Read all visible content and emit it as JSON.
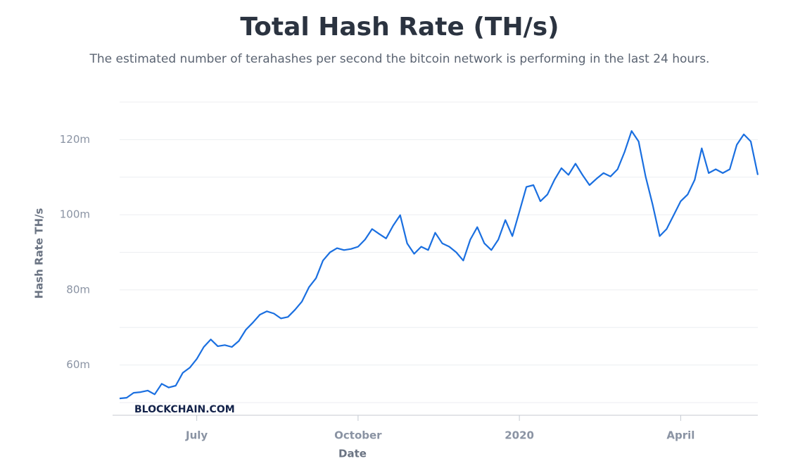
{
  "chart_data": {
    "type": "line",
    "title": "Total Hash Rate (TH/s)",
    "subtitle": "The estimated number of terahashes per second the bitcoin network is performing in the last 24 hours.",
    "ylabel": "Hash Rate TH/s",
    "xlabel": "Date",
    "watermark": "BLOCKCHAIN.COM",
    "color": "#1a6fe0",
    "grid": true,
    "ylim": [
      50,
      130
    ],
    "yticks": [
      {
        "value": 60,
        "label": "60m"
      },
      {
        "value": 80,
        "label": "80m"
      },
      {
        "value": 100,
        "label": "100m"
      },
      {
        "value": 120,
        "label": "120m"
      }
    ],
    "minor_yticks": [
      50,
      70,
      90,
      110,
      130
    ],
    "categories": [
      null,
      null,
      null,
      null,
      null,
      null,
      null,
      null,
      null,
      null,
      null,
      "July",
      null,
      null,
      null,
      null,
      null,
      null,
      null,
      null,
      null,
      null,
      null,
      null,
      null,
      null,
      null,
      null,
      null,
      null,
      null,
      null,
      null,
      null,
      "October",
      null,
      null,
      null,
      null,
      null,
      null,
      null,
      null,
      null,
      null,
      null,
      null,
      null,
      null,
      null,
      null,
      null,
      null,
      null,
      null,
      null,
      null,
      "2020",
      null,
      null,
      null,
      null,
      null,
      null,
      null,
      null,
      null,
      null,
      null,
      null,
      null,
      null,
      null,
      null,
      null,
      null,
      null,
      null,
      null,
      null,
      "April",
      null,
      null,
      null,
      null,
      null,
      null,
      null,
      null,
      null,
      null,
      null
    ],
    "values": [
      51.1,
      51.3,
      52.6,
      52.8,
      53.2,
      52.2,
      55,
      54,
      54.5,
      57.9,
      59.3,
      61.6,
      64.8,
      66.8,
      65,
      65.3,
      64.8,
      66.4,
      69.4,
      71.3,
      73.4,
      74.3,
      73.7,
      72.4,
      72.8,
      74.7,
      76.9,
      80.7,
      83.1,
      87.8,
      90,
      91.1,
      90.6,
      90.9,
      91.5,
      93.4,
      96.2,
      94.9,
      93.7,
      97.1,
      99.9,
      92.4,
      89.6,
      91.5,
      90.6,
      95.2,
      92.4,
      91.5,
      90,
      87.8,
      93.4,
      96.7,
      92.4,
      90.6,
      93.4,
      98.6,
      94.3,
      100.8,
      107.4,
      107.9,
      103.6,
      105.4,
      109.3,
      112.4,
      110.6,
      113.6,
      110.6,
      107.9,
      109.6,
      111.1,
      110.2,
      112.1,
      116.7,
      122.3,
      119.5,
      110.2,
      102.7,
      94.3,
      96.2,
      99.9,
      103.6,
      105.4,
      109.3,
      117.7,
      111.1,
      112.1,
      111.1,
      112.1,
      118.6,
      121.4,
      119.5,
      110.6
    ]
  }
}
